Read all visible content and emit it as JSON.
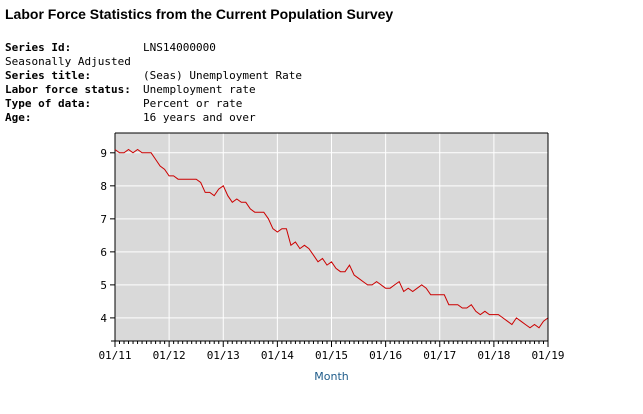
{
  "header": {
    "title": "Labor Force Statistics from the Current Population Survey"
  },
  "series_info": {
    "series_id_label": "Series Id:",
    "series_id": "LNS14000000",
    "adjustment": "Seasonally Adjusted",
    "series_title_label": "Series title:",
    "series_title": "(Seas) Unemployment Rate",
    "labor_force_status_label": "Labor force status:",
    "labor_force_status": "Unemployment rate",
    "type_label": "Type of data:",
    "type": "Percent or rate",
    "age_label": "Age:",
    "age": "16 years and over"
  },
  "colors": {
    "line": "#cc0000",
    "plot_background": "#d9d9d9",
    "grid": "#ffffff",
    "xlabel": "#1f5c8a"
  },
  "chart_data": {
    "type": "line",
    "title": "",
    "xlabel": "Month",
    "ylabel": "",
    "x_start": "2011-01",
    "x_end": "2019-01",
    "xticks": [
      "01/11",
      "01/12",
      "01/13",
      "01/14",
      "01/15",
      "01/16",
      "01/17",
      "01/18",
      "01/19"
    ],
    "yticks": [
      4,
      5,
      6,
      7,
      8,
      9
    ],
    "ylim": [
      3.3,
      9.6
    ],
    "grid": true,
    "series": [
      {
        "name": "Unemployment Rate",
        "values": [
          9.1,
          9.0,
          9.0,
          9.1,
          9.0,
          9.1,
          9.0,
          9.0,
          9.0,
          8.8,
          8.6,
          8.5,
          8.3,
          8.3,
          8.2,
          8.2,
          8.2,
          8.2,
          8.2,
          8.1,
          7.8,
          7.8,
          7.7,
          7.9,
          8.0,
          7.7,
          7.5,
          7.6,
          7.5,
          7.5,
          7.3,
          7.2,
          7.2,
          7.2,
          7.0,
          6.7,
          6.6,
          6.7,
          6.7,
          6.2,
          6.3,
          6.1,
          6.2,
          6.1,
          5.9,
          5.7,
          5.8,
          5.6,
          5.7,
          5.5,
          5.4,
          5.4,
          5.6,
          5.3,
          5.2,
          5.1,
          5.0,
          5.0,
          5.1,
          5.0,
          4.9,
          4.9,
          5.0,
          5.1,
          4.8,
          4.9,
          4.8,
          4.9,
          5.0,
          4.9,
          4.7,
          4.7,
          4.7,
          4.7,
          4.4,
          4.4,
          4.4,
          4.3,
          4.3,
          4.4,
          4.2,
          4.1,
          4.2,
          4.1,
          4.1,
          4.1,
          4.0,
          3.9,
          3.8,
          4.0,
          3.9,
          3.8,
          3.7,
          3.8,
          3.7,
          3.9,
          4.0
        ]
      }
    ]
  }
}
